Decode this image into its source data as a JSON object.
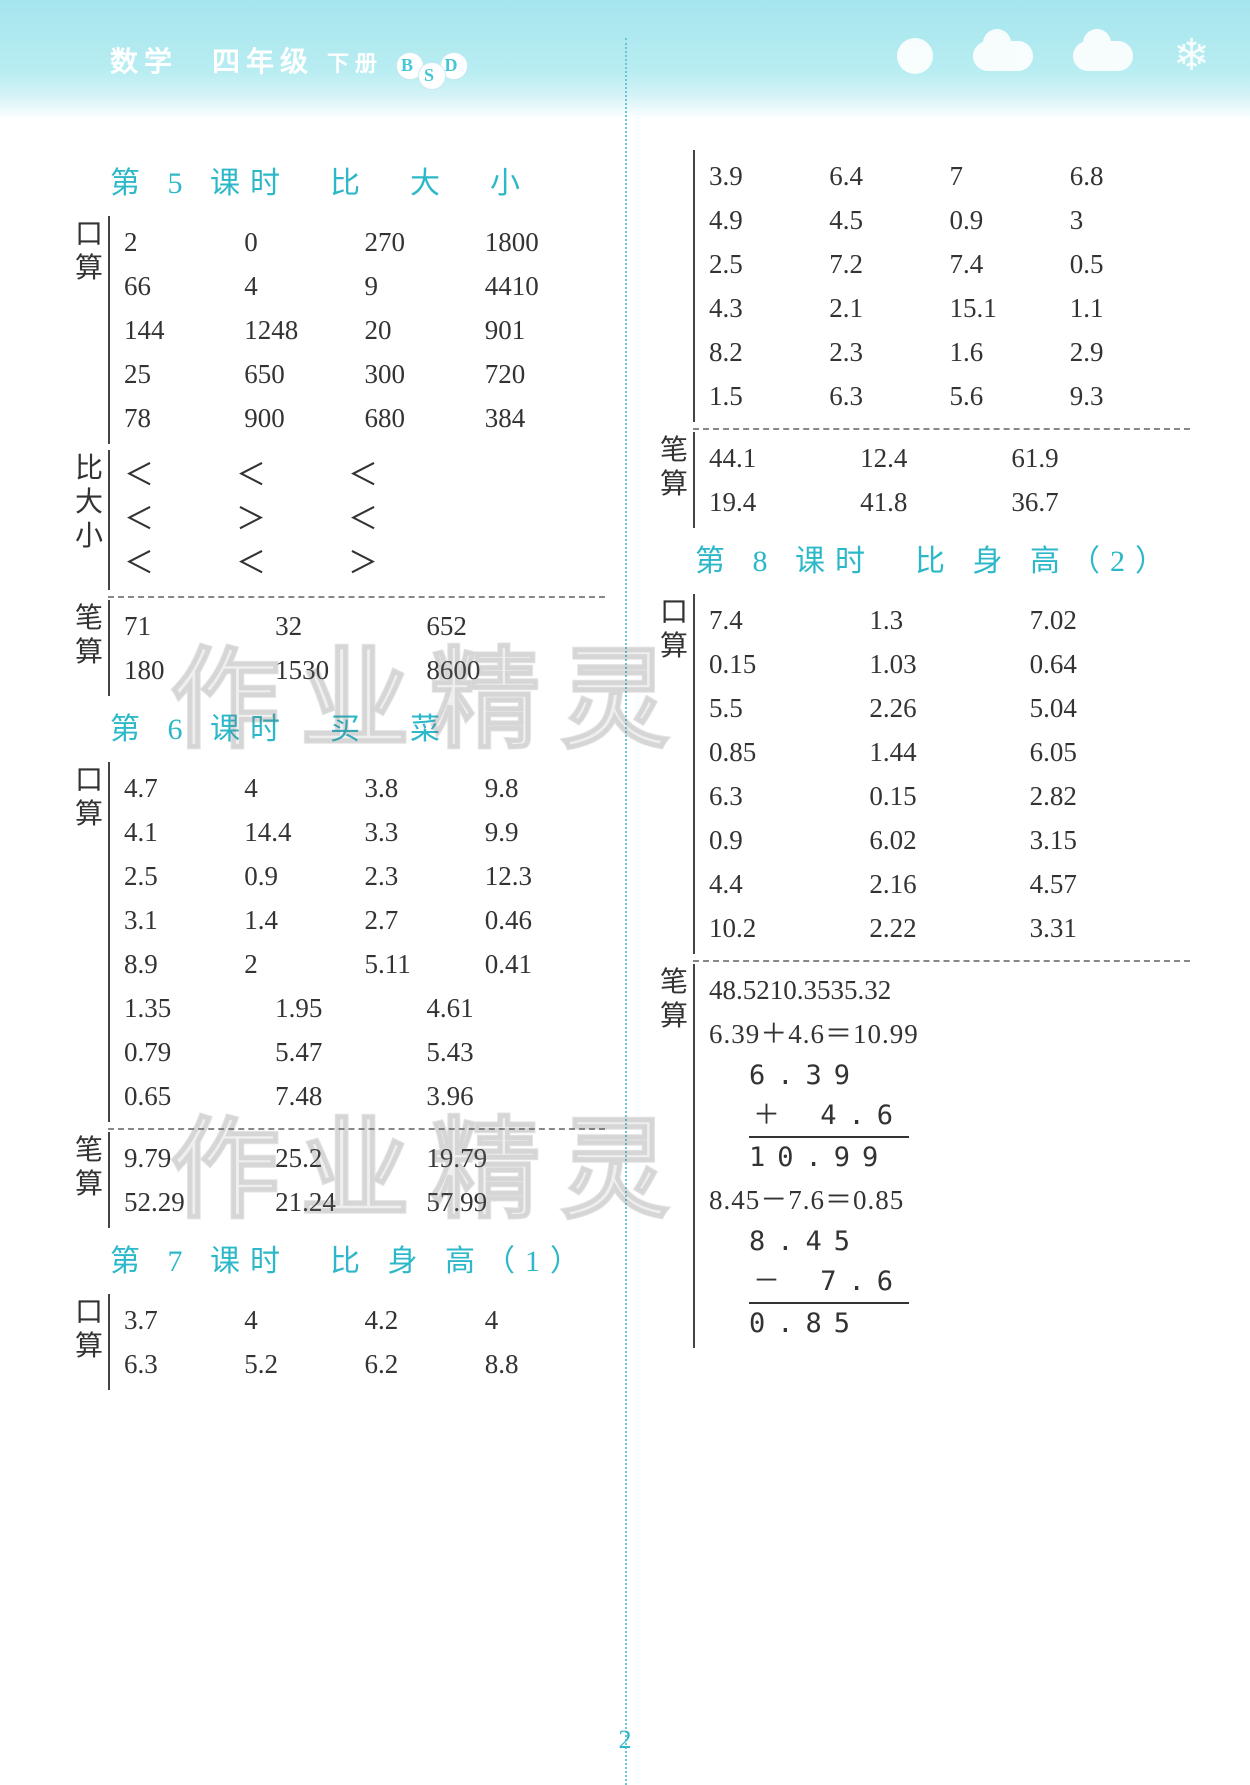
{
  "header": {
    "title_pre": "数学　四年级",
    "title_suf": "下册",
    "badge": [
      "B",
      "S",
      "D"
    ]
  },
  "page_number": "2",
  "watermarks": [
    "作业精灵",
    "作业精灵"
  ],
  "left": {
    "lesson5": {
      "title": "第 5 课时　比　大　小",
      "mental_label": "口算",
      "mental_rows": [
        [
          "2",
          "0",
          "270",
          "1800"
        ],
        [
          "66",
          "4",
          "9",
          "4410"
        ],
        [
          "144",
          "1248",
          "20",
          "901"
        ],
        [
          "25",
          "650",
          "300",
          "720"
        ],
        [
          "78",
          "900",
          "680",
          "384"
        ]
      ],
      "compare_label": "比大小",
      "compare_rows": [
        "＜　＜　＜",
        "＜　＞　＜",
        "＜　＜　＞"
      ],
      "written_label": "笔算",
      "written_rows": [
        [
          "71",
          "32",
          "652"
        ],
        [
          "180",
          "1530",
          "8600"
        ]
      ]
    },
    "lesson6": {
      "title": "第 6 课时　买　菜",
      "mental_label": "口算",
      "mental_rows4": [
        [
          "4.7",
          "4",
          "3.8",
          "9.8"
        ],
        [
          "4.1",
          "14.4",
          "3.3",
          "9.9"
        ],
        [
          "2.5",
          "0.9",
          "2.3",
          "12.3"
        ],
        [
          "3.1",
          "1.4",
          "2.7",
          "0.46"
        ],
        [
          "8.9",
          "2",
          "5.11",
          "0.41"
        ]
      ],
      "mental_rows3": [
        [
          "1.35",
          "1.95",
          "4.61"
        ],
        [
          "0.79",
          "5.47",
          "5.43"
        ],
        [
          "0.65",
          "7.48",
          "3.96"
        ]
      ],
      "written_label": "笔算",
      "written_rows": [
        [
          "9.79",
          "25.2",
          "19.79"
        ],
        [
          "52.29",
          "21.24",
          "57.99"
        ]
      ]
    },
    "lesson7": {
      "title": "第 7 课时　比 身 高（1）",
      "mental_label": "口算",
      "mental_rows": [
        [
          "3.7",
          "4",
          "4.2",
          "4"
        ],
        [
          "6.3",
          "5.2",
          "6.2",
          "8.8"
        ]
      ]
    }
  },
  "right": {
    "cont_mental": [
      [
        "3.9",
        "6.4",
        "7",
        "6.8"
      ],
      [
        "4.9",
        "4.5",
        "0.9",
        "3"
      ],
      [
        "2.5",
        "7.2",
        "7.4",
        "0.5"
      ],
      [
        "4.3",
        "2.1",
        "15.1",
        "1.1"
      ],
      [
        "8.2",
        "2.3",
        "1.6",
        "2.9"
      ],
      [
        "1.5",
        "6.3",
        "5.6",
        "9.3"
      ]
    ],
    "cont_written_label": "笔算",
    "cont_written": [
      [
        "44.1",
        "12.4",
        "61.9"
      ],
      [
        "19.4",
        "41.8",
        "36.7"
      ]
    ],
    "lesson8": {
      "title": "第 8 课时　比 身 高（2）",
      "mental_label": "口算",
      "mental_rows": [
        [
          "7.4",
          "1.3",
          "7.02"
        ],
        [
          "0.15",
          "1.03",
          "0.64"
        ],
        [
          "5.5",
          "2.26",
          "5.04"
        ],
        [
          "0.85",
          "1.44",
          "6.05"
        ],
        [
          "6.3",
          "0.15",
          "2.82"
        ],
        [
          "0.9",
          "6.02",
          "3.15"
        ],
        [
          "4.4",
          "2.16",
          "4.57"
        ],
        [
          "10.2",
          "2.22",
          "3.31"
        ]
      ],
      "written_label": "笔算",
      "written_top": [
        "48.52",
        "10.35",
        "35.32"
      ],
      "eq1": "6.39＋4.6＝10.99",
      "vert1": {
        "a": "6.39",
        "b": "＋  4.6 ",
        "r": "10.99"
      },
      "eq2": "8.45－7.6＝0.85",
      "vert2": {
        "a": "8.45",
        "b": "－ 7.6 ",
        "r": "0.85"
      }
    }
  }
}
